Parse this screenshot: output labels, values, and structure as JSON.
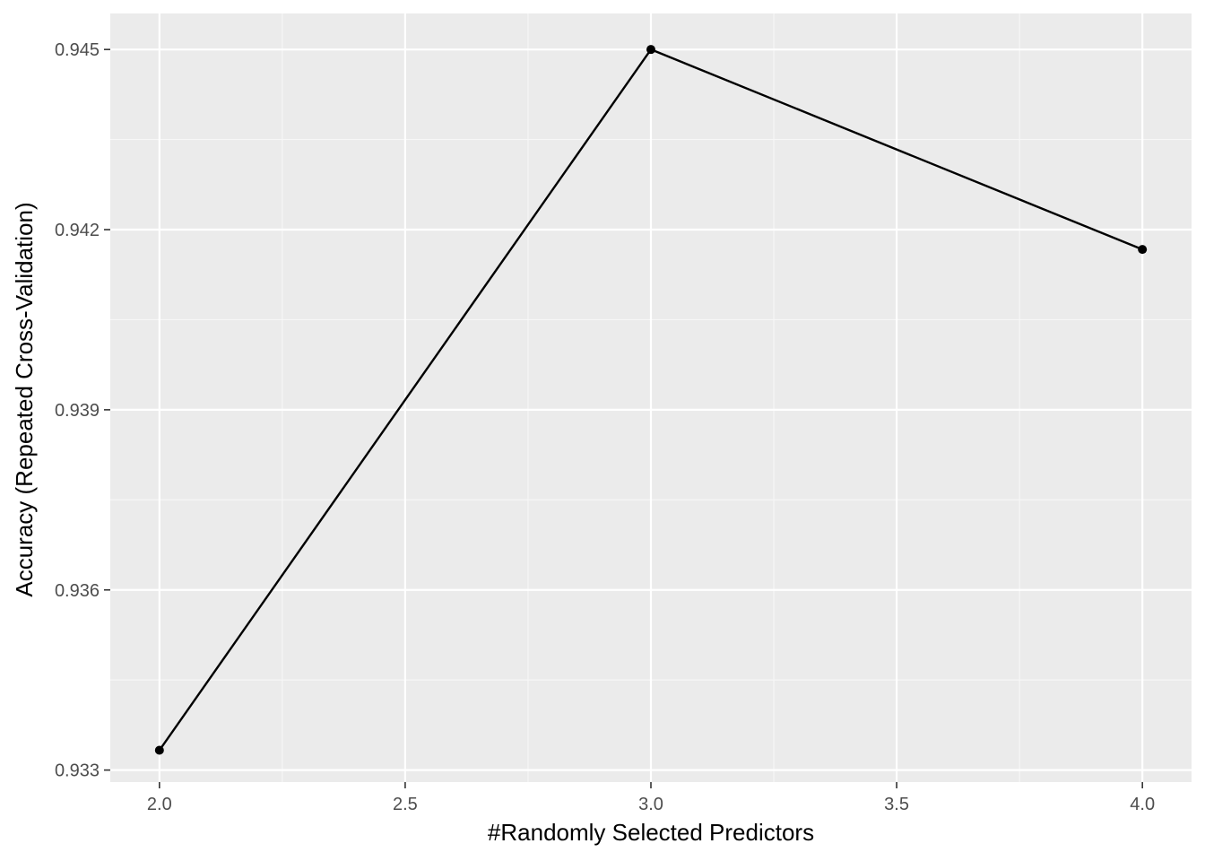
{
  "chart_data": {
    "type": "line",
    "title": "",
    "xlabel": "#Randomly Selected Predictors",
    "ylabel": "Accuracy (Repeated Cross-Validation)",
    "xlim": [
      1.9,
      4.1
    ],
    "ylim": [
      0.9328,
      0.9456
    ],
    "x_ticks": [
      2.0,
      2.5,
      3.0,
      3.5,
      4.0
    ],
    "x_tick_labels": [
      "2.0",
      "2.5",
      "3.0",
      "3.5",
      "4.0"
    ],
    "x_minor_ticks": [
      2.25,
      2.75,
      3.25,
      3.75
    ],
    "y_ticks": [
      0.933,
      0.936,
      0.939,
      0.942,
      0.945
    ],
    "y_tick_labels": [
      "0.933",
      "0.936",
      "0.939",
      "0.942",
      "0.945"
    ],
    "y_minor_ticks": [
      0.9345,
      0.9375,
      0.9405,
      0.9435
    ],
    "grid": true,
    "series": [
      {
        "name": "Accuracy",
        "x": [
          2,
          3,
          4
        ],
        "values": [
          0.93333,
          0.945,
          0.94167
        ]
      }
    ],
    "colors": {
      "panel_background": "#ebebeb",
      "grid_major": "#ffffff",
      "grid_minor": "#f7f7f7",
      "line": "#000000",
      "point": "#000000",
      "tick_text": "#4d4d4d",
      "tick_mark": "#333333"
    }
  }
}
